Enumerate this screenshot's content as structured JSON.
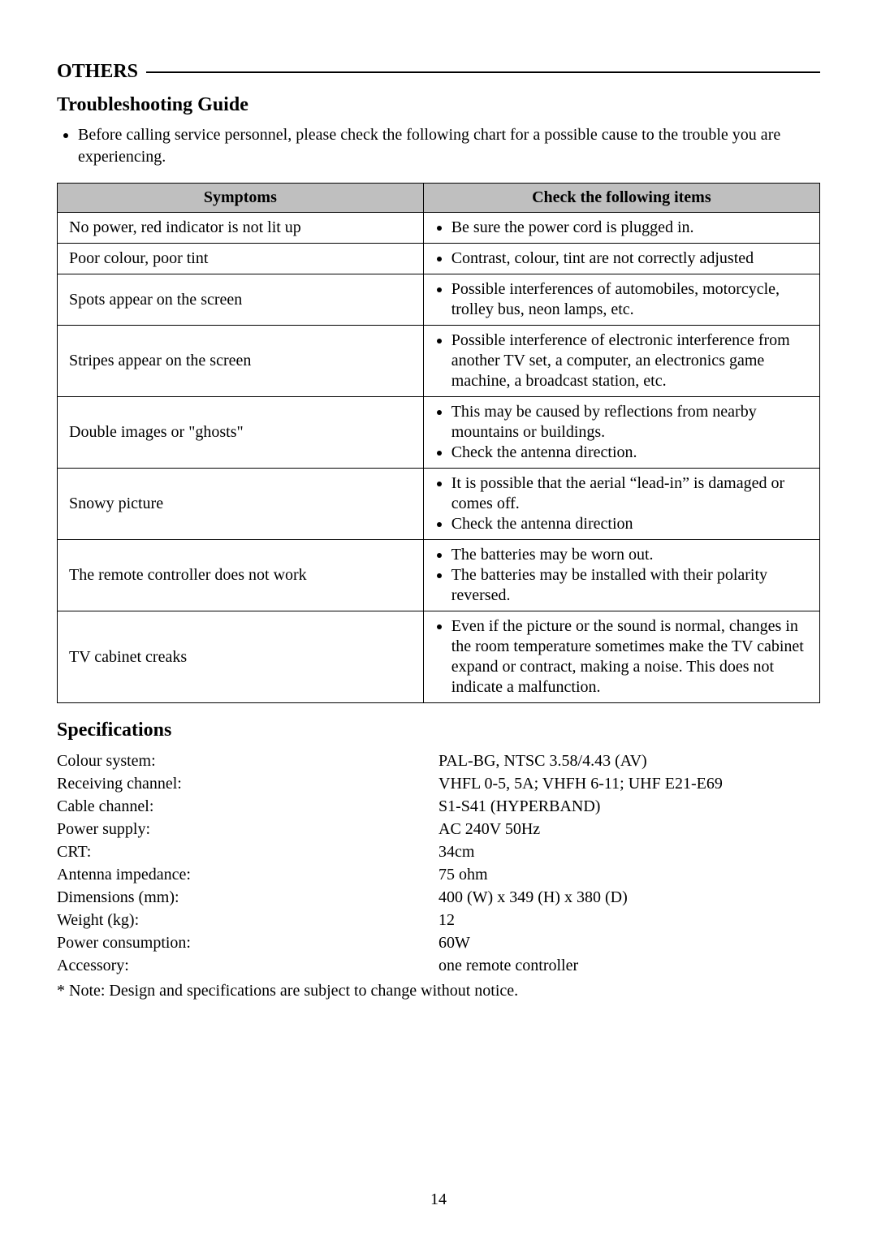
{
  "section_header": "OTHERS",
  "subheading": "Troubleshooting Guide",
  "intro_bullet": "Before calling service personnel, please check the following chart for a possible cause to the trouble you are experiencing.",
  "table": {
    "col1": "Symptoms",
    "col2": "Check the following items",
    "rows": [
      {
        "symptom": "No power, red indicator is not lit up",
        "checks": [
          "Be sure the power cord is plugged in."
        ]
      },
      {
        "symptom": "Poor colour, poor tint",
        "checks": [
          "Contrast, colour, tint are not correctly adjusted"
        ]
      },
      {
        "symptom": "Spots appear on the screen",
        "checks": [
          "Possible interferences of automobiles, motorcycle, trolley bus, neon lamps, etc."
        ]
      },
      {
        "symptom": "Stripes appear on the screen",
        "checks": [
          "Possible interference of electronic interference from another TV set, a computer, an electronics game machine, a broadcast station, etc."
        ]
      },
      {
        "symptom": "Double images or \"ghosts\"",
        "checks": [
          "This may be caused by reflections from nearby mountains or buildings.",
          "Check the antenna direction."
        ]
      },
      {
        "symptom": "Snowy picture",
        "checks": [
          "It is possible that the aerial “lead-in” is damaged or comes off.",
          "Check the antenna direction"
        ]
      },
      {
        "symptom": "The remote controller does not work",
        "checks": [
          "The batteries may be worn out.",
          "The batteries may be installed with their polarity reversed."
        ]
      },
      {
        "symptom": "TV cabinet creaks",
        "checks": [
          "Even if the picture or the sound is normal, changes in the room temperature sometimes make the TV cabinet expand or contract, making a noise. This does not indicate a malfunction."
        ]
      }
    ]
  },
  "specs_heading": "Specifications",
  "specs": [
    {
      "label": "Colour system:",
      "value": "PAL-BG, NTSC  3.58/4.43 (AV)"
    },
    {
      "label": "Receiving channel:",
      "value": "VHFL 0-5, 5A; VHFH 6-11; UHF E21-E69"
    },
    {
      "label": "Cable channel:",
      "value": "S1-S41 (HYPERBAND)"
    },
    {
      "label": "Power supply:",
      "value": "AC 240V 50Hz"
    },
    {
      "label": "CRT:",
      "value": "34cm"
    },
    {
      "label": "Antenna impedance:",
      "value": "75 ohm"
    },
    {
      "label": "Dimensions (mm):",
      "value": "400 (W) x 349 (H) x 380 (D)"
    },
    {
      "label": "Weight (kg):",
      "value": "12"
    },
    {
      "label": "Power consumption:",
      "value": "60W"
    },
    {
      "label": "Accessory:",
      "value": "one remote controller"
    }
  ],
  "note": "* Note: Design and specifications are subject to change without notice.",
  "page_number": "14"
}
